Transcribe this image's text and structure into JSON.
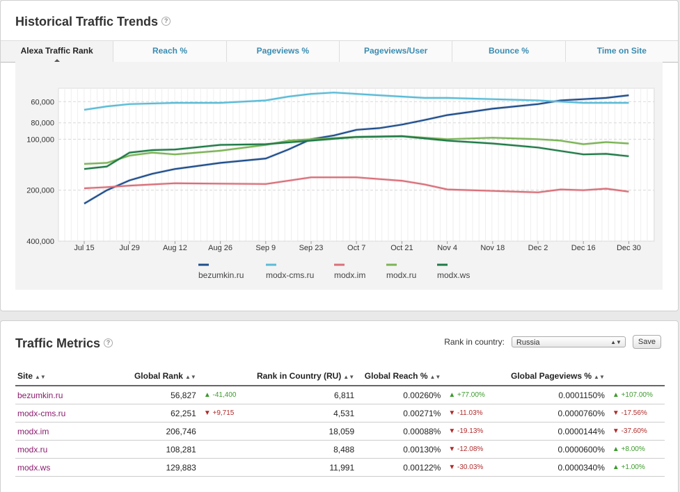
{
  "trends": {
    "title": "Historical Traffic Trends",
    "help": "?",
    "tabs": [
      {
        "label": "Alexa Traffic Rank",
        "active": true
      },
      {
        "label": "Reach %",
        "active": false
      },
      {
        "label": "Pageviews %",
        "active": false
      },
      {
        "label": "Pageviews/User",
        "active": false
      },
      {
        "label": "Bounce %",
        "active": false
      },
      {
        "label": "Time on Site",
        "active": false
      }
    ]
  },
  "chart_data": {
    "type": "line",
    "title": "",
    "xlabel": "",
    "ylabel": "",
    "y_scale": "log, inverted (rank)",
    "ylim": [
      50000,
      400000
    ],
    "yticks": [
      "60,000",
      "80,000",
      "100,000",
      "200,000",
      "400,000"
    ],
    "ytick_values": [
      60000,
      80000,
      100000,
      200000,
      400000
    ],
    "xticks": [
      "Jul 15",
      "Jul 29",
      "Aug 12",
      "Aug 26",
      "Sep 9",
      "Sep 23",
      "Oct 7",
      "Oct 21",
      "Nov 4",
      "Nov 18",
      "Dec 2",
      "Dec 16",
      "Dec 30"
    ],
    "x_day_start": "Jul 15",
    "grid": true,
    "legend_position": "bottom",
    "series": [
      {
        "name": "bezumkin.ru",
        "color": "#1f4e8c",
        "points": [
          [
            "Jul 15",
            240000
          ],
          [
            "Jul 22",
            200000
          ],
          [
            "Jul 29",
            175000
          ],
          [
            "Aug 5",
            160000
          ],
          [
            "Aug 12",
            150000
          ],
          [
            "Aug 26",
            138000
          ],
          [
            "Sep 9",
            130000
          ],
          [
            "Sep 16",
            115000
          ],
          [
            "Sep 23",
            100000
          ],
          [
            "Sep 30",
            95000
          ],
          [
            "Oct 7",
            88000
          ],
          [
            "Oct 14",
            86000
          ],
          [
            "Oct 21",
            82000
          ],
          [
            "Oct 28",
            77000
          ],
          [
            "Nov 4",
            72000
          ],
          [
            "Nov 11",
            69000
          ],
          [
            "Nov 18",
            66000
          ],
          [
            "Nov 25",
            64000
          ],
          [
            "Dec 2",
            62000
          ],
          [
            "Dec 9",
            59000
          ],
          [
            "Dec 16",
            58000
          ],
          [
            "Dec 23",
            57000
          ],
          [
            "Dec 30",
            55000
          ]
        ]
      },
      {
        "name": "modx-cms.ru",
        "color": "#5bbbd6",
        "points": [
          [
            "Jul 15",
            67000
          ],
          [
            "Jul 22",
            64000
          ],
          [
            "Jul 29",
            62000
          ],
          [
            "Aug 12",
            61000
          ],
          [
            "Aug 26",
            61000
          ],
          [
            "Sep 9",
            59000
          ],
          [
            "Sep 16",
            56000
          ],
          [
            "Sep 23",
            54000
          ],
          [
            "Sep 30",
            53000
          ],
          [
            "Oct 7",
            54000
          ],
          [
            "Oct 14",
            55000
          ],
          [
            "Oct 21",
            56000
          ],
          [
            "Oct 28",
            57000
          ],
          [
            "Nov 4",
            57000
          ],
          [
            "Nov 18",
            58000
          ],
          [
            "Dec 2",
            59000
          ],
          [
            "Dec 9",
            60000
          ],
          [
            "Dec 16",
            61000
          ],
          [
            "Dec 30",
            61000
          ]
        ]
      },
      {
        "name": "modx.im",
        "color": "#d9707a",
        "points": [
          [
            "Jul 15",
            195000
          ],
          [
            "Jul 22",
            192000
          ],
          [
            "Jul 29",
            188000
          ],
          [
            "Aug 12",
            182000
          ],
          [
            "Aug 26",
            183000
          ],
          [
            "Sep 9",
            184000
          ],
          [
            "Sep 23",
            168000
          ],
          [
            "Oct 7",
            168000
          ],
          [
            "Oct 14",
            172000
          ],
          [
            "Oct 21",
            176000
          ],
          [
            "Oct 28",
            185000
          ],
          [
            "Nov 4",
            198000
          ],
          [
            "Nov 18",
            202000
          ],
          [
            "Dec 2",
            206000
          ],
          [
            "Dec 9",
            198000
          ],
          [
            "Dec 16",
            200000
          ],
          [
            "Dec 23",
            196000
          ],
          [
            "Dec 30",
            204000
          ]
        ]
      },
      {
        "name": "modx.ru",
        "color": "#7cb356",
        "points": [
          [
            "Jul 15",
            140000
          ],
          [
            "Jul 22",
            138000
          ],
          [
            "Jul 29",
            125000
          ],
          [
            "Aug 5",
            120000
          ],
          [
            "Aug 12",
            123000
          ],
          [
            "Aug 26",
            117000
          ],
          [
            "Sep 9",
            108000
          ],
          [
            "Sep 16",
            102000
          ],
          [
            "Sep 23",
            100000
          ],
          [
            "Oct 7",
            97000
          ],
          [
            "Oct 21",
            96000
          ],
          [
            "Nov 4",
            100000
          ],
          [
            "Nov 18",
            98000
          ],
          [
            "Dec 2",
            100000
          ],
          [
            "Dec 9",
            102000
          ],
          [
            "Dec 16",
            107000
          ],
          [
            "Dec 23",
            104000
          ],
          [
            "Dec 30",
            106000
          ]
        ]
      },
      {
        "name": "modx.ws",
        "color": "#1f7a47",
        "points": [
          [
            "Jul 15",
            150000
          ],
          [
            "Jul 22",
            145000
          ],
          [
            "Jul 29",
            120000
          ],
          [
            "Aug 5",
            116000
          ],
          [
            "Aug 12",
            115000
          ],
          [
            "Aug 26",
            108000
          ],
          [
            "Sep 9",
            107000
          ],
          [
            "Sep 23",
            102000
          ],
          [
            "Oct 7",
            97000
          ],
          [
            "Oct 21",
            96000
          ],
          [
            "Nov 4",
            102000
          ],
          [
            "Nov 18",
            106000
          ],
          [
            "Dec 2",
            112000
          ],
          [
            "Dec 16",
            123000
          ],
          [
            "Dec 23",
            122000
          ],
          [
            "Dec 30",
            126000
          ]
        ]
      }
    ]
  },
  "metrics": {
    "title": "Traffic Metrics",
    "help": "?",
    "rank_label": "Rank in country:",
    "country": "Russia",
    "save_label": "Save",
    "sort_glyph": "▲▼",
    "columns": [
      "Site",
      "Global Rank",
      "Rank in Country (RU)",
      "Global Reach %",
      "Global Pageviews %"
    ],
    "rows": [
      {
        "site": "bezumkin.ru",
        "global_rank": "56,827",
        "rank_delta": "▲ -41,400",
        "rank_dir": "up",
        "country_rank": "6,811",
        "reach": "0.00260%",
        "reach_delta": "▲ +77.00%",
        "reach_dir": "up",
        "pageviews": "0.0001150%",
        "pv_delta": "▲ +107.00%",
        "pv_dir": "up"
      },
      {
        "site": "modx-cms.ru",
        "global_rank": "62,251",
        "rank_delta": "▼ +9,715",
        "rank_dir": "dn",
        "country_rank": "4,531",
        "reach": "0.00271%",
        "reach_delta": "▼ -11.03%",
        "reach_dir": "dn",
        "pageviews": "0.0000760%",
        "pv_delta": "▼ -17.56%",
        "pv_dir": "dn"
      },
      {
        "site": "modx.im",
        "global_rank": "206,746",
        "rank_delta": "",
        "rank_dir": "",
        "country_rank": "18,059",
        "reach": "0.00088%",
        "reach_delta": "▼ -19.13%",
        "reach_dir": "dn",
        "pageviews": "0.0000144%",
        "pv_delta": "▼ -37.60%",
        "pv_dir": "dn"
      },
      {
        "site": "modx.ru",
        "global_rank": "108,281",
        "rank_delta": "",
        "rank_dir": "",
        "country_rank": "8,488",
        "reach": "0.00130%",
        "reach_delta": "▼ -12.08%",
        "reach_dir": "dn",
        "pageviews": "0.0000600%",
        "pv_delta": "▲ +8.00%",
        "pv_dir": "up"
      },
      {
        "site": "modx.ws",
        "global_rank": "129,883",
        "rank_delta": "",
        "rank_dir": "",
        "country_rank": "11,991",
        "reach": "0.00122%",
        "reach_delta": "▼ -30.03%",
        "reach_dir": "dn",
        "pageviews": "0.0000340%",
        "pv_delta": "▲ +1.00%",
        "pv_dir": "up"
      }
    ]
  }
}
